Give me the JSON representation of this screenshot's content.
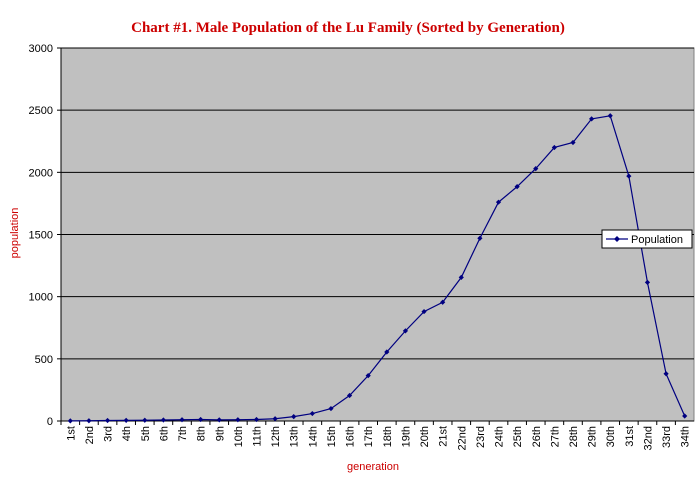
{
  "chart_data": {
    "type": "line",
    "title": "Chart #1. Male Population of the Lu Family (Sorted by Generation)",
    "xlabel": "generation",
    "ylabel": "population",
    "ylim": [
      0,
      3000
    ],
    "yticks": [
      0,
      500,
      1000,
      1500,
      2000,
      2500,
      3000
    ],
    "categories": [
      "1st",
      "2nd",
      "3rd",
      "4th",
      "5th",
      "6th",
      "7th",
      "8th",
      "9th",
      "10th",
      "11th",
      "12th",
      "13th",
      "14th",
      "15th",
      "16th",
      "17th",
      "18th",
      "19th",
      "20th",
      "21st",
      "22nd",
      "23rd",
      "24th",
      "25th",
      "26th",
      "27th",
      "28th",
      "29th",
      "30th",
      "31st",
      "32nd",
      "33rd",
      "34th"
    ],
    "series": [
      {
        "name": "Population",
        "values": [
          1,
          2,
          4,
          5,
          6,
          8,
          10,
          12,
          9,
          10,
          12,
          18,
          35,
          60,
          100,
          205,
          365,
          555,
          725,
          880,
          955,
          1155,
          1470,
          1760,
          1885,
          2030,
          2200,
          2240,
          2430,
          2455,
          1970,
          1115,
          380,
          40
        ]
      }
    ],
    "grid": "horizontal",
    "legend_position": "right",
    "colors": {
      "title": "#cc0000",
      "axis_labels": "#cc0000",
      "series": "#000080",
      "plot_background": "#c0c0c0",
      "gridlines": "#000000"
    }
  }
}
